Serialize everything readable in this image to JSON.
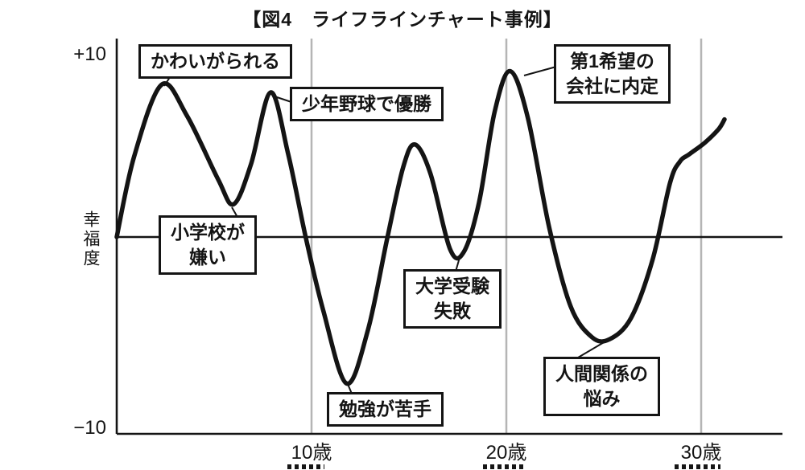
{
  "title": {
    "text": "【図4　ライフラインチャート事例】"
  },
  "y_axis": {
    "top_label": "+10",
    "bottom_label": "−10",
    "title": "幸福度"
  },
  "x_axis": {
    "labels": [
      "10歳",
      "20歳",
      "30歳"
    ]
  },
  "annotations": [
    {
      "id": "loved-as-child",
      "lines": [
        "かわいがられる"
      ]
    },
    {
      "id": "won-youth-baseball",
      "lines": [
        "少年野球で優勝"
      ]
    },
    {
      "id": "hated-elementary-school",
      "lines": [
        "小学校が",
        "嫌い"
      ]
    },
    {
      "id": "bad-at-studying",
      "lines": [
        "勉強が苦手"
      ]
    },
    {
      "id": "failed-university-exam",
      "lines": [
        "大学受験",
        "失敗"
      ]
    },
    {
      "id": "job-offer-first-choice",
      "lines": [
        "第1希望の",
        "会社に内定"
      ]
    },
    {
      "id": "relationship-troubles",
      "lines": [
        "人間関係の",
        "悩み"
      ]
    }
  ],
  "colors": {
    "curve": "#141414",
    "axis": "#141414",
    "gridline": "#b5b5b5",
    "annotation_border": "#141414",
    "background": "#ffffff"
  },
  "chart_data": {
    "type": "line",
    "title": "【図4　ライフラインチャート事例】",
    "xlabel": "",
    "ylabel": "幸福度",
    "xlim": [
      0,
      32
    ],
    "ylim": [
      -10,
      10
    ],
    "x_ticks": [
      10,
      20,
      30
    ],
    "x_tick_labels": [
      "10歳",
      "20歳",
      "30歳"
    ],
    "y_tick_labels": [
      "+10",
      "−10"
    ],
    "grid": "vertical-at-x-ticks",
    "legend": "none",
    "series": [
      {
        "name": "幸福度",
        "points": [
          [
            0,
            0
          ],
          [
            0.9,
            4.2
          ],
          [
            2.3,
            7.9
          ],
          [
            3.6,
            6.3
          ],
          [
            5.2,
            3.0
          ],
          [
            6.0,
            1.7
          ],
          [
            6.9,
            3.8
          ],
          [
            7.9,
            7.5
          ],
          [
            8.8,
            4.3
          ],
          [
            9.7,
            0.0
          ],
          [
            10.6,
            -3.8
          ],
          [
            11.8,
            -7.6
          ],
          [
            12.9,
            -4.8
          ],
          [
            13.9,
            0.0
          ],
          [
            14.7,
            3.6
          ],
          [
            15.3,
            4.8
          ],
          [
            16.1,
            3.3
          ],
          [
            17.1,
            -0.6
          ],
          [
            17.8,
            -0.8
          ],
          [
            18.6,
            1.8
          ],
          [
            19.4,
            6.5
          ],
          [
            20.2,
            8.6
          ],
          [
            21.1,
            6.2
          ],
          [
            22.2,
            0.5
          ],
          [
            23.3,
            -3.6
          ],
          [
            24.4,
            -5.2
          ],
          [
            25.3,
            -5.3
          ],
          [
            26.4,
            -4.2
          ],
          [
            27.5,
            -1.2
          ],
          [
            28.4,
            2.8
          ],
          [
            28.9,
            3.9
          ],
          [
            29.4,
            4.3
          ],
          [
            30.2,
            4.9
          ],
          [
            30.9,
            5.6
          ],
          [
            31.2,
            6.1
          ]
        ]
      }
    ],
    "annotations": [
      {
        "label": "かわいがられる",
        "age": 2.3,
        "value": 7.9
      },
      {
        "label": "少年野球で優勝",
        "age": 7.9,
        "value": 7.5
      },
      {
        "label": "小学校が嫌い",
        "age": 6.0,
        "value": 1.7
      },
      {
        "label": "勉強が苦手",
        "age": 11.8,
        "value": -7.6
      },
      {
        "label": "大学受験失敗",
        "age": 17.8,
        "value": -0.8
      },
      {
        "label": "第1希望の会社に内定",
        "age": 20.2,
        "value": 8.6
      },
      {
        "label": "人間関係の悩み",
        "age": 25.3,
        "value": -5.3
      }
    ]
  }
}
